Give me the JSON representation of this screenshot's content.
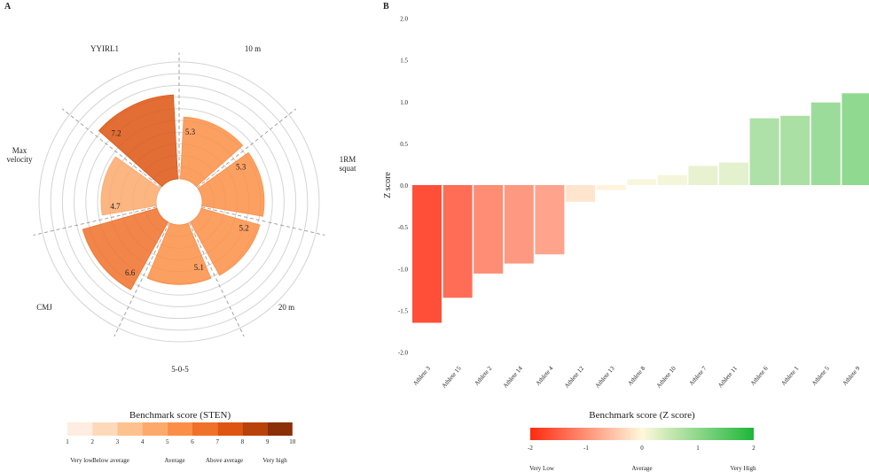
{
  "chart_data": [
    {
      "panel_label": "A",
      "type": "polar-bar",
      "categories": [
        "5-0-5",
        "20 m",
        "1RM squat",
        "10 m",
        "YYIRL1",
        "Max velocity",
        "CMJ"
      ],
      "values": [
        5.1,
        5.2,
        5.3,
        5.3,
        7.2,
        4.7,
        6.6
      ],
      "rlim": [
        0,
        10
      ],
      "grid": true,
      "legend": {
        "title": "Benchmark score (STEN)",
        "ticks": [
          "1",
          "2",
          "3",
          "4",
          "5",
          "6",
          "7",
          "8",
          "9",
          "10"
        ],
        "colors": [
          "#feede0",
          "#fdd9b9",
          "#fdc28f",
          "#fca96b",
          "#fb8f47",
          "#f0712a",
          "#de5512",
          "#b9410a",
          "#8c2e06"
        ],
        "labels": [
          "Very low",
          "Below average",
          "Average",
          "Above average",
          "Very high"
        ]
      }
    },
    {
      "panel_label": "B",
      "type": "bar",
      "categories": [
        "Athlete 3",
        "Athlete 15",
        "Athlete 2",
        "Athlete 14",
        "Athlete 4",
        "Athlete 12",
        "Athlete 13",
        "Athlete 8",
        "Athlete 10",
        "Athlete 7",
        "Athlete 11",
        "Athlete 6",
        "Athlete 1",
        "Athlete 5",
        "Athlete 9"
      ],
      "values": [
        -1.65,
        -1.35,
        -1.06,
        -0.94,
        -0.83,
        -0.2,
        -0.06,
        0.07,
        0.12,
        0.23,
        0.27,
        0.8,
        0.83,
        0.99,
        1.1
      ],
      "ylabel": "Z score",
      "ylim": [
        -2,
        2
      ],
      "yticks": [
        "-2.0",
        "-1.5",
        "-1.0",
        "-0.5",
        "0.0",
        "0.5",
        "1.0",
        "1.5",
        "2.0"
      ],
      "grid": false,
      "legend": {
        "title": "Benchmark score (Z score)",
        "ticks": [
          "-2",
          "-1",
          "0",
          "1",
          "2"
        ],
        "colors": [
          "#ff2a10",
          "#fff8dc",
          "#1db63a"
        ],
        "labels": [
          "Very Low",
          "Average",
          "Very High"
        ]
      }
    }
  ]
}
